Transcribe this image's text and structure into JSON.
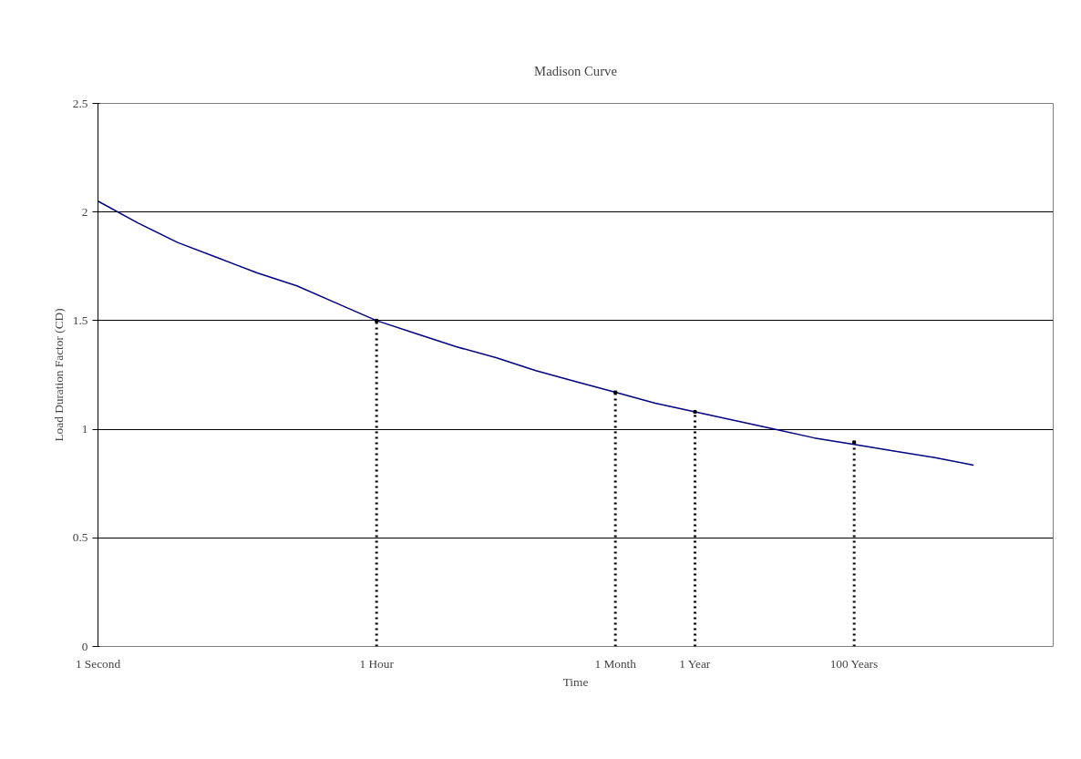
{
  "chart_data": {
    "type": "line",
    "title": "Madison Curve",
    "xlabel": "Time",
    "ylabel": "Load Duration Factor (CD)",
    "categories": [
      "1 Second",
      null,
      null,
      null,
      null,
      null,
      null,
      "1 Hour",
      null,
      null,
      null,
      null,
      null,
      "1 Month",
      null,
      "1 Year",
      null,
      null,
      null,
      "100 Years",
      null,
      null,
      null,
      null,
      null
    ],
    "ylim": [
      0,
      2.5
    ],
    "yticks": [
      0,
      0.5,
      1,
      1.5,
      2,
      2.5
    ],
    "grid": "y",
    "series": [
      {
        "color": "#000080",
        "line_style": "solid",
        "values": [
          2.05,
          1.95,
          1.86,
          1.79,
          1.72,
          1.66,
          1.58,
          1.5,
          1.44,
          1.38,
          1.33,
          1.27,
          1.22,
          1.17,
          1.12,
          1.08,
          1.04,
          1.0,
          0.96,
          0.93,
          0.9,
          0.87,
          0.835,
          null,
          null
        ]
      },
      {
        "type": "lollipop",
        "color": "#000000",
        "line_style": "dotted",
        "marker": "square",
        "values": [
          null,
          null,
          null,
          null,
          null,
          null,
          null,
          1.5,
          null,
          null,
          null,
          null,
          null,
          1.17,
          null,
          1.08,
          null,
          null,
          null,
          0.94,
          null,
          null,
          null,
          null,
          null
        ]
      }
    ]
  }
}
